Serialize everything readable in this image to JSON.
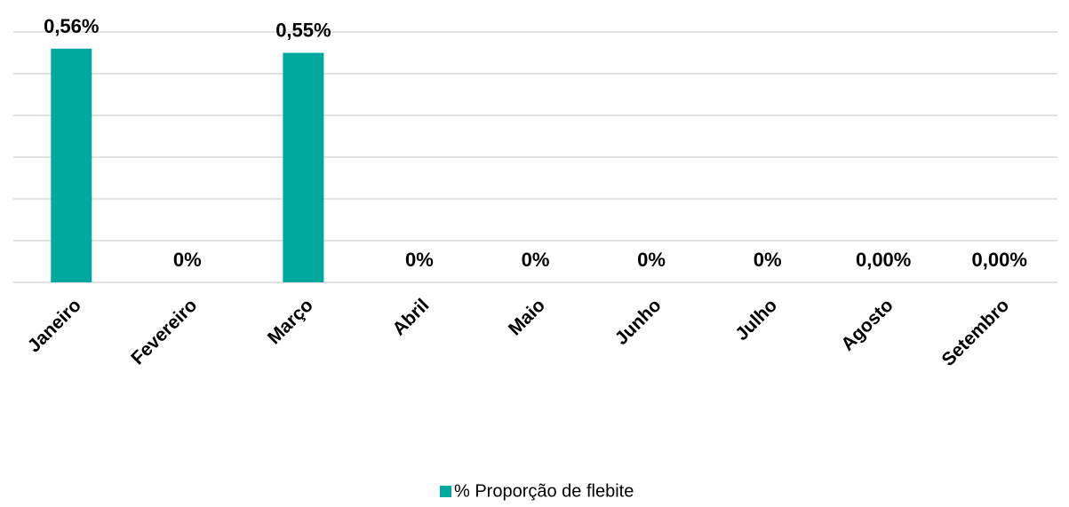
{
  "chart_data": {
    "type": "bar",
    "categories": [
      "Janeiro",
      "Fevereiro",
      "Março",
      "Abril",
      "Maio",
      "Junho",
      "Julho",
      "Agosto",
      "Setembro"
    ],
    "series": [
      {
        "name": "% Proporção de flebite",
        "color": "#00a99d",
        "values": [
          0.56,
          0,
          0.55,
          0,
          0,
          0,
          0,
          0,
          0
        ],
        "value_labels": [
          "0,56%",
          "0%",
          "0,55%",
          "0%",
          "0%",
          "0%",
          "0%",
          "0,00%",
          "0,00%"
        ]
      }
    ],
    "ylim": [
      0,
      0.6
    ],
    "yticks": [
      0,
      0.1,
      0.2,
      0.3,
      0.4,
      0.5,
      0.6
    ],
    "grid": true,
    "legend": "bottom"
  }
}
